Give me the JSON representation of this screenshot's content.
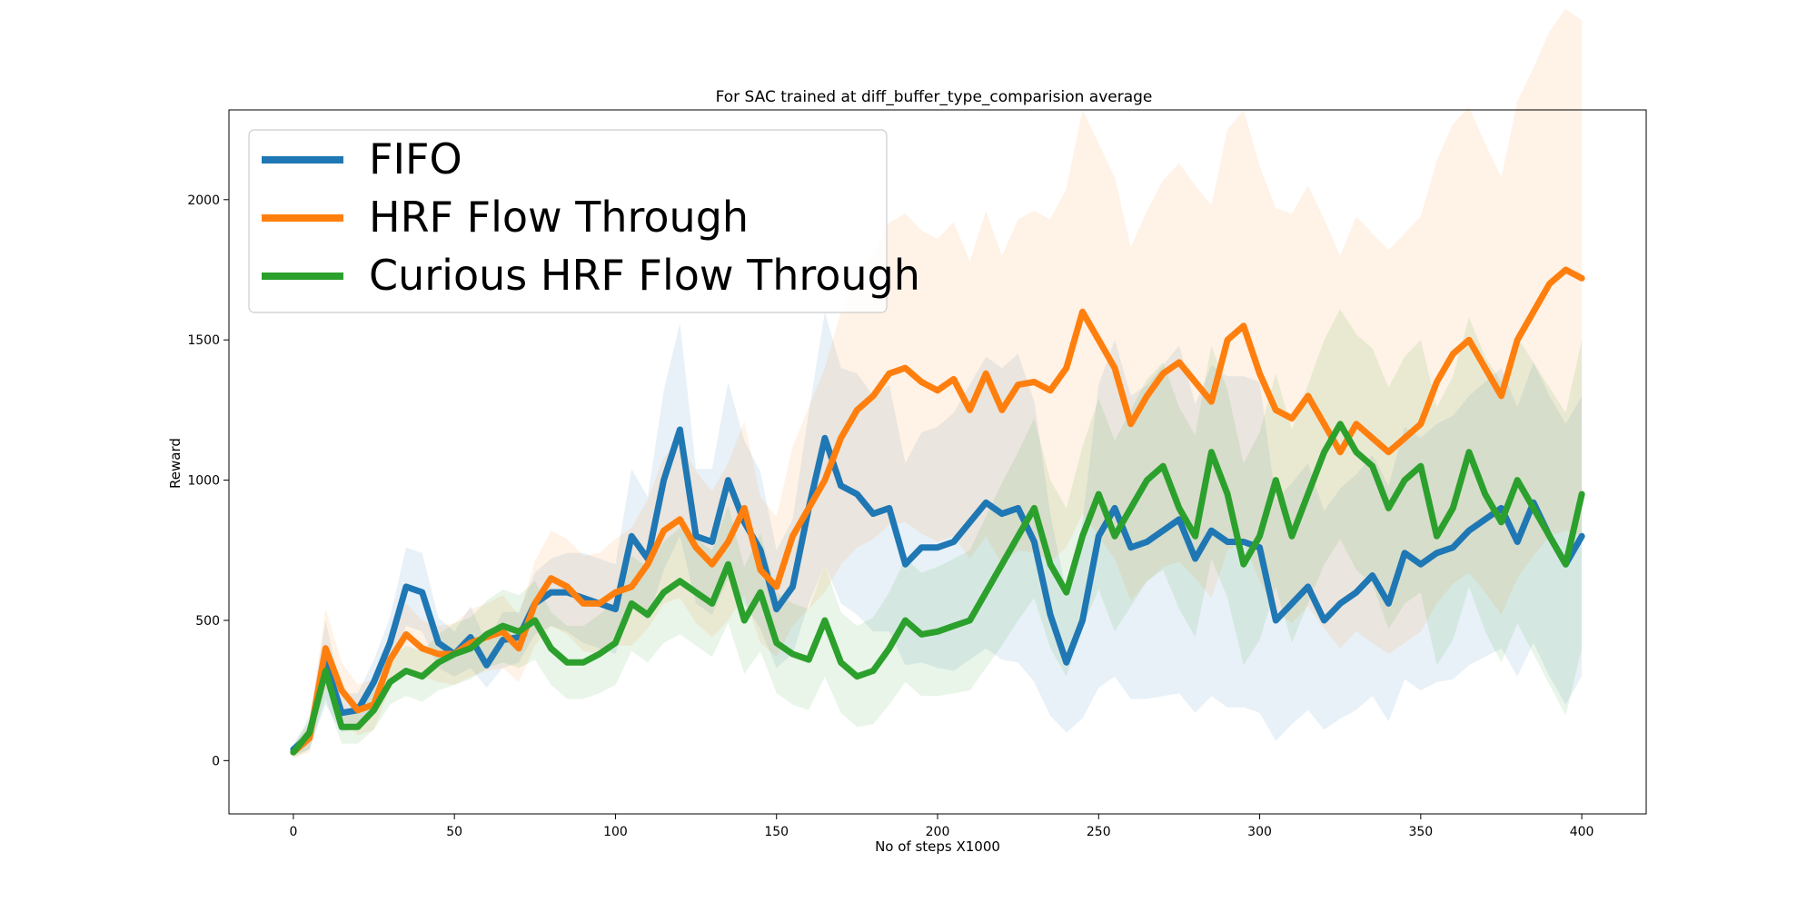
{
  "chart_data": {
    "type": "line",
    "title": "For SAC trained at diff_buffer_type_comparision average",
    "xlabel": "No of steps X1000",
    "ylabel": "Reward",
    "xlim": [
      -20,
      420
    ],
    "ylim": [
      -190,
      2320
    ],
    "xticks": [
      0,
      50,
      100,
      150,
      200,
      250,
      300,
      350,
      400
    ],
    "yticks": [
      0,
      500,
      1000,
      1500,
      2000
    ],
    "legend_position": "top-left",
    "grid": false,
    "x": [
      0,
      5,
      10,
      15,
      20,
      25,
      30,
      35,
      40,
      45,
      50,
      55,
      60,
      65,
      70,
      75,
      80,
      85,
      90,
      95,
      100,
      105,
      110,
      115,
      120,
      125,
      130,
      135,
      140,
      145,
      150,
      155,
      160,
      165,
      170,
      175,
      180,
      185,
      190,
      195,
      200,
      205,
      210,
      215,
      220,
      225,
      230,
      235,
      240,
      245,
      250,
      255,
      260,
      265,
      270,
      275,
      280,
      285,
      290,
      295,
      300,
      305,
      310,
      315,
      320,
      325,
      330,
      335,
      340,
      345,
      350,
      355,
      360,
      365,
      370,
      375,
      380,
      385,
      390,
      395,
      400
    ],
    "series": [
      {
        "name": "FIFO",
        "color": "#1f77b4",
        "values": [
          40,
          90,
          350,
          170,
          180,
          280,
          420,
          620,
          600,
          420,
          380,
          440,
          340,
          430,
          440,
          560,
          600,
          600,
          580,
          560,
          540,
          800,
          720,
          1000,
          1180,
          800,
          780,
          1000,
          850,
          750,
          540,
          620,
          900,
          1150,
          980,
          950,
          880,
          900,
          700,
          760,
          760,
          780,
          850,
          920,
          880,
          900,
          780,
          520,
          350,
          500,
          800,
          900,
          760,
          780,
          820,
          860,
          720,
          820,
          780,
          780,
          760,
          500,
          560,
          620,
          500,
          560,
          600,
          660,
          560,
          740,
          700,
          740,
          760,
          820,
          860,
          900,
          780,
          920,
          800,
          700,
          800
        ],
        "band_lower": [
          20,
          40,
          200,
          100,
          120,
          200,
          330,
          480,
          460,
          330,
          300,
          330,
          260,
          330,
          350,
          450,
          480,
          460,
          420,
          400,
          380,
          560,
          500,
          680,
          800,
          560,
          520,
          650,
          560,
          470,
          330,
          380,
          560,
          700,
          560,
          520,
          460,
          460,
          340,
          350,
          330,
          320,
          360,
          400,
          360,
          350,
          280,
          160,
          100,
          150,
          260,
          300,
          220,
          220,
          230,
          240,
          170,
          230,
          190,
          190,
          170,
          70,
          130,
          180,
          110,
          150,
          180,
          230,
          140,
          290,
          250,
          280,
          290,
          340,
          370,
          400,
          300,
          420,
          300,
          200,
          300
        ],
        "band_upper": [
          60,
          140,
          500,
          240,
          240,
          360,
          510,
          760,
          740,
          510,
          460,
          550,
          420,
          530,
          530,
          670,
          720,
          740,
          740,
          720,
          700,
          1040,
          940,
          1320,
          1560,
          1040,
          1040,
          1350,
          1140,
          1030,
          750,
          860,
          1240,
          1600,
          1400,
          1380,
          1300,
          1340,
          1060,
          1170,
          1190,
          1240,
          1340,
          1440,
          1400,
          1450,
          1280,
          880,
          600,
          850,
          1340,
          1500,
          1300,
          1340,
          1410,
          1480,
          1270,
          1410,
          1370,
          1370,
          1350,
          930,
          990,
          1060,
          890,
          970,
          1020,
          1090,
          980,
          1190,
          1150,
          1200,
          1230,
          1300,
          1350,
          1400,
          1260,
          1420,
          1300,
          1200,
          1300
        ]
      },
      {
        "name": "HRF Flow Through",
        "color": "#ff7f0e",
        "values": [
          30,
          80,
          400,
          250,
          180,
          200,
          360,
          450,
          400,
          380,
          380,
          420,
          440,
          460,
          400,
          560,
          650,
          620,
          560,
          560,
          600,
          620,
          700,
          820,
          860,
          760,
          700,
          780,
          900,
          680,
          620,
          800,
          900,
          1000,
          1150,
          1250,
          1300,
          1380,
          1400,
          1350,
          1320,
          1360,
          1250,
          1380,
          1250,
          1340,
          1350,
          1320,
          1400,
          1600,
          1500,
          1400,
          1200,
          1300,
          1380,
          1420,
          1350,
          1280,
          1500,
          1550,
          1380,
          1250,
          1220,
          1300,
          1200,
          1100,
          1200,
          1150,
          1100,
          1150,
          1200,
          1350,
          1450,
          1500,
          1400,
          1300,
          1500,
          1600,
          1700,
          1750,
          1720
        ],
        "band_lower": [
          10,
          30,
          260,
          150,
          90,
          110,
          260,
          340,
          300,
          280,
          270,
          300,
          320,
          330,
          280,
          410,
          480,
          450,
          390,
          380,
          410,
          410,
          470,
          560,
          580,
          490,
          440,
          500,
          590,
          420,
          370,
          480,
          540,
          600,
          700,
          760,
          790,
          840,
          850,
          810,
          780,
          800,
          720,
          800,
          700,
          750,
          740,
          710,
          760,
          880,
          800,
          720,
          570,
          640,
          690,
          710,
          650,
          580,
          750,
          780,
          640,
          530,
          490,
          550,
          470,
          400,
          460,
          420,
          380,
          420,
          460,
          560,
          630,
          670,
          600,
          520,
          650,
          730,
          800,
          820,
          800
        ],
        "band_upper": [
          50,
          130,
          540,
          350,
          270,
          290,
          460,
          560,
          500,
          480,
          490,
          540,
          560,
          590,
          520,
          710,
          820,
          790,
          730,
          740,
          790,
          830,
          930,
          1080,
          1140,
          1030,
          960,
          1060,
          1210,
          940,
          870,
          1120,
          1260,
          1400,
          1600,
          1740,
          1810,
          1920,
          1950,
          1890,
          1860,
          1920,
          1780,
          1960,
          1800,
          1930,
          1960,
          1930,
          2040,
          2320,
          2200,
          2080,
          1830,
          1960,
          2070,
          2130,
          2050,
          1980,
          2250,
          2320,
          2120,
          1970,
          1950,
          2050,
          1930,
          1800,
          1940,
          1880,
          1820,
          1880,
          1940,
          2140,
          2270,
          2330,
          2200,
          2080,
          2350,
          2470,
          2600,
          2680,
          2640
        ]
      },
      {
        "name": "Curious HRF Flow Through",
        "color": "#2ca02c",
        "values": [
          30,
          100,
          320,
          120,
          120,
          180,
          280,
          320,
          300,
          350,
          380,
          400,
          450,
          480,
          460,
          500,
          400,
          350,
          350,
          380,
          420,
          560,
          520,
          600,
          640,
          600,
          560,
          700,
          500,
          600,
          420,
          380,
          360,
          500,
          350,
          300,
          320,
          400,
          500,
          450,
          460,
          480,
          500,
          600,
          700,
          800,
          900,
          700,
          600,
          800,
          950,
          800,
          900,
          1000,
          1050,
          900,
          800,
          1100,
          950,
          700,
          800,
          1000,
          800,
          950,
          1100,
          1200,
          1100,
          1050,
          900,
          1000,
          1050,
          800,
          900,
          1100,
          950,
          850,
          1000,
          900,
          800,
          700,
          950
        ],
        "band_lower": [
          10,
          40,
          220,
          60,
          60,
          110,
          200,
          230,
          210,
          250,
          270,
          290,
          330,
          350,
          330,
          360,
          270,
          220,
          220,
          240,
          270,
          390,
          350,
          420,
          450,
          410,
          370,
          490,
          310,
          390,
          240,
          200,
          180,
          300,
          170,
          120,
          130,
          200,
          280,
          230,
          230,
          240,
          250,
          330,
          410,
          500,
          580,
          400,
          300,
          480,
          610,
          460,
          550,
          640,
          680,
          540,
          440,
          720,
          580,
          340,
          430,
          620,
          420,
          560,
          700,
          790,
          680,
          630,
          470,
          560,
          600,
          340,
          430,
          620,
          460,
          350,
          490,
          380,
          270,
          160,
          400
        ],
        "band_upper": [
          50,
          160,
          420,
          180,
          180,
          250,
          360,
          410,
          390,
          450,
          490,
          510,
          570,
          610,
          590,
          640,
          530,
          480,
          480,
          520,
          570,
          730,
          690,
          780,
          830,
          790,
          750,
          910,
          690,
          810,
          600,
          560,
          540,
          700,
          530,
          480,
          510,
          600,
          720,
          670,
          690,
          720,
          750,
          870,
          990,
          1100,
          1220,
          1000,
          900,
          1120,
          1290,
          1140,
          1250,
          1360,
          1420,
          1260,
          1160,
          1480,
          1320,
          1060,
          1170,
          1380,
          1180,
          1340,
          1500,
          1610,
          1520,
          1470,
          1330,
          1440,
          1500,
          1260,
          1370,
          1580,
          1440,
          1350,
          1510,
          1420,
          1330,
          1240,
          1500
        ]
      }
    ]
  }
}
